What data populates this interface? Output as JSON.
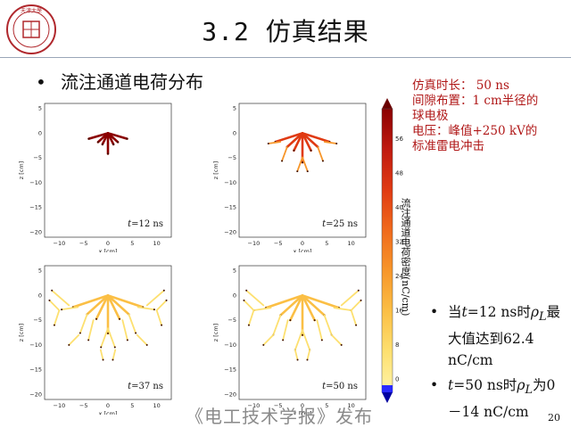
{
  "header": {
    "title": "3.2 仿真结果",
    "logo": "university-seal",
    "seal_text": "天津大學"
  },
  "main": {
    "bullet": "流注通道电荷分布"
  },
  "info": {
    "line1": "仿真时长： 50 ns",
    "line2": "间隙布置：1 cm半径的",
    "line3": "球电极",
    "line4": "电压：峰值+250 kV的",
    "line5": "标准雷电冲击"
  },
  "panels": [
    {
      "t_prefix": "t",
      "t_value": "=12 ns",
      "extent": 0.45,
      "intensity": 1.0
    },
    {
      "t_prefix": "t",
      "t_value": "=25 ns",
      "extent": 0.7,
      "intensity": 0.65
    },
    {
      "t_prefix": "t",
      "t_value": "=37 ns",
      "extent": 0.95,
      "intensity": 0.35
    },
    {
      "t_prefix": "t",
      "t_value": "=50 ns",
      "extent": 1.0,
      "intensity": 0.25
    }
  ],
  "axes": {
    "xlabel": "x [cm]",
    "ylabel": "z [cm]",
    "xticks": [
      "−10",
      "−5",
      "0",
      "5",
      "10"
    ],
    "yticks": [
      "5",
      "0",
      "−5",
      "−10",
      "−15",
      "−20"
    ]
  },
  "colorbar": {
    "title": "流注通道电荷密度(nC/cm)",
    "ticks": [
      "56",
      "48",
      "40",
      "32",
      "24",
      "16",
      "8",
      "0"
    ],
    "colors": [
      "#8b0000",
      "#c01a10",
      "#e03a12",
      "#f06a1c",
      "#f7962a",
      "#fbbf45",
      "#fde070",
      "#fff3a8"
    ]
  },
  "notes": {
    "n1_a": "当",
    "n1_t": "t",
    "n1_b": "=12 ns时",
    "n1_rho": "ρ",
    "n1_sub": "L",
    "n1_c": "最大值达到62.4 nC/cm",
    "n2_t": "t",
    "n2_b": "=50 ns时",
    "n2_rho": "ρ",
    "n2_sub": "L",
    "n2_c": "为0－14 nC/cm"
  },
  "footer": {
    "text": "《电工技术学报》发布",
    "page": "20"
  }
}
